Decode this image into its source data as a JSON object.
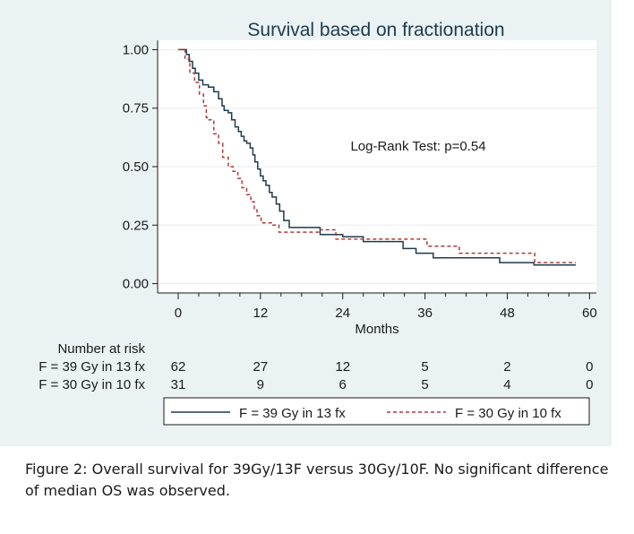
{
  "chart_data": {
    "type": "line",
    "subtype": "kaplan-meier",
    "title": "Survival based on fractionation",
    "xlabel": "Months",
    "ylabel": "",
    "xlim": [
      -3,
      61
    ],
    "ylim": [
      -0.04,
      1.04
    ],
    "xticks": [
      0,
      12,
      24,
      36,
      48,
      60
    ],
    "yticks": [
      0,
      0.25,
      0.5,
      0.75,
      1.0
    ],
    "xtick_labels": [
      "0",
      "12",
      "24",
      "36",
      "48",
      "60"
    ],
    "ytick_labels": [
      "0.00",
      "0.25",
      "0.50",
      "0.75",
      "1.00"
    ],
    "annotation": "Log-Rank Test: p=0.54",
    "legend": {
      "position": "bottom",
      "items": [
        "F = 39 Gy in 13 fx",
        "F = 30 Gy in 10 fx"
      ]
    },
    "risk_table": {
      "header": "Number at risk",
      "rows": [
        {
          "label": "F = 39 Gy in 13 fx",
          "values": [
            "62",
            "27",
            "12",
            "5",
            "2",
            "0"
          ]
        },
        {
          "label": "F = 30 Gy in 10 fx",
          "values": [
            "31",
            "9",
            "6",
            "5",
            "4",
            "0"
          ]
        }
      ]
    },
    "series": [
      {
        "name": "F = 39 Gy in 13 fx",
        "color": "#1f3a4d",
        "dash": "solid",
        "x": [
          0,
          1.2,
          1.6,
          2.1,
          2.5,
          3.0,
          3.6,
          4.4,
          5.2,
          5.9,
          6.4,
          6.7,
          7.3,
          7.8,
          8.3,
          8.8,
          9.2,
          9.6,
          10.0,
          10.5,
          10.9,
          11.2,
          11.6,
          12.0,
          12.4,
          12.8,
          13.3,
          13.7,
          14.3,
          14.8,
          15.4,
          16.2,
          20.7,
          24.0,
          27.0,
          30.9,
          32.8,
          34.7,
          37.2,
          39.2,
          46.9,
          49.4,
          51.9,
          54.0,
          58.0
        ],
        "y": [
          1.0,
          0.98,
          0.95,
          0.92,
          0.9,
          0.87,
          0.85,
          0.84,
          0.82,
          0.79,
          0.76,
          0.74,
          0.73,
          0.7,
          0.67,
          0.65,
          0.63,
          0.61,
          0.6,
          0.58,
          0.55,
          0.52,
          0.49,
          0.46,
          0.44,
          0.42,
          0.39,
          0.37,
          0.34,
          0.31,
          0.27,
          0.24,
          0.21,
          0.2,
          0.18,
          0.18,
          0.15,
          0.13,
          0.11,
          0.11,
          0.09,
          0.09,
          0.08,
          0.08,
          0.08
        ]
      },
      {
        "name": "F = 30 Gy in 10 fx",
        "color": "#b13a3a",
        "dash": "dashed",
        "x": [
          0,
          1.0,
          1.7,
          2.4,
          3.1,
          3.7,
          4.1,
          4.5,
          5.2,
          5.9,
          6.5,
          7.3,
          8.0,
          8.7,
          9.3,
          10.0,
          10.6,
          11.1,
          11.5,
          12.1,
          13.6,
          14.7,
          16.5,
          20.6,
          23.0,
          25.0,
          30.5,
          34.2,
          36.3,
          38.9,
          41.0,
          48.0,
          52.0,
          58.0
        ],
        "y": [
          1.0,
          0.96,
          0.9,
          0.86,
          0.81,
          0.76,
          0.71,
          0.7,
          0.64,
          0.6,
          0.54,
          0.5,
          0.48,
          0.45,
          0.41,
          0.38,
          0.35,
          0.32,
          0.29,
          0.26,
          0.25,
          0.22,
          0.22,
          0.23,
          0.19,
          0.19,
          0.19,
          0.19,
          0.16,
          0.16,
          0.13,
          0.13,
          0.09,
          0.09
        ]
      }
    ]
  },
  "caption": "Figure 2: Overall survival for 39Gy/13F versus 30Gy/10F. No significant difference of median OS was observed."
}
